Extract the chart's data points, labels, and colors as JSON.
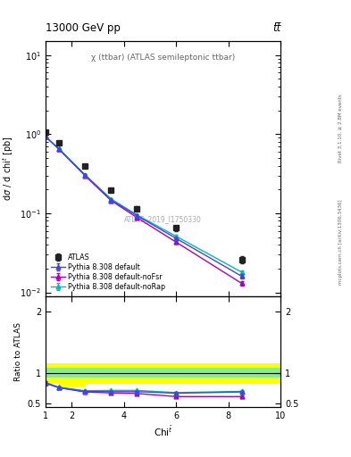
{
  "title_top": "13000 GeV pp",
  "title_right": "tt̅",
  "annotation": "χ (ttbar) (ATLAS semileptonic ttbar)",
  "atlas_label": "ATLAS_2019_I1750330",
  "rivet_label": "Rivet 3.1.10, ≥ 2.8M events",
  "mc_label": "mcplots.cern.ch [arXiv:1306.3436]",
  "chi_x": [
    1.0,
    1.5,
    2.5,
    3.5,
    4.5,
    6.0,
    8.5
  ],
  "atlas_y": [
    1.05,
    0.78,
    0.4,
    0.195,
    0.115,
    0.065,
    0.026
  ],
  "atlas_yerr": [
    0.05,
    0.04,
    0.02,
    0.01,
    0.007,
    0.005,
    0.003
  ],
  "py_def_y": [
    0.93,
    0.65,
    0.305,
    0.148,
    0.093,
    0.048,
    0.016
  ],
  "py_def_err": [
    0.015,
    0.01,
    0.006,
    0.004,
    0.003,
    0.002,
    0.001
  ],
  "py_nofsr_y": [
    0.93,
    0.65,
    0.3,
    0.145,
    0.088,
    0.043,
    0.013
  ],
  "py_nofsr_err": [
    0.015,
    0.01,
    0.006,
    0.004,
    0.003,
    0.002,
    0.001
  ],
  "py_norap_y": [
    0.93,
    0.66,
    0.308,
    0.152,
    0.095,
    0.051,
    0.018
  ],
  "py_norap_err": [
    0.015,
    0.01,
    0.006,
    0.004,
    0.003,
    0.002,
    0.001
  ],
  "ratio_def_y": [
    0.84,
    0.76,
    0.7,
    0.695,
    0.695,
    0.67,
    0.69
  ],
  "ratio_def_err": [
    0.02,
    0.015,
    0.012,
    0.012,
    0.012,
    0.015,
    0.018
  ],
  "ratio_nofsr_y": [
    0.83,
    0.76,
    0.69,
    0.675,
    0.665,
    0.615,
    0.615
  ],
  "ratio_nofsr_err": [
    0.02,
    0.015,
    0.012,
    0.012,
    0.012,
    0.015,
    0.018
  ],
  "ratio_norap_y": [
    0.84,
    0.77,
    0.71,
    0.715,
    0.715,
    0.68,
    0.7
  ],
  "ratio_norap_err": [
    0.02,
    0.015,
    0.012,
    0.012,
    0.012,
    0.015,
    0.018
  ],
  "band_x_edges": [
    1.0,
    1.5,
    2.5,
    3.5,
    4.5,
    6.0,
    8.5,
    10.0
  ],
  "band_green_lo": [
    0.92,
    0.92,
    0.92,
    0.92,
    0.92,
    0.92,
    0.92
  ],
  "band_green_hi": [
    1.08,
    1.08,
    1.08,
    1.08,
    1.08,
    1.08,
    1.08
  ],
  "band_yellow_lo": [
    0.82,
    0.78,
    0.82,
    0.82,
    0.82,
    0.82,
    0.82
  ],
  "band_yellow_hi": [
    1.15,
    1.15,
    1.15,
    1.15,
    1.15,
    1.15,
    1.15
  ],
  "color_default": "#4444dd",
  "color_noFsr": "#aa00bb",
  "color_noRap": "#00bbbb",
  "color_atlas": "#222222",
  "xlim": [
    1.0,
    10.0
  ],
  "ylim_main": [
    0.009,
    15.0
  ],
  "ylim_ratio": [
    0.45,
    2.25
  ]
}
